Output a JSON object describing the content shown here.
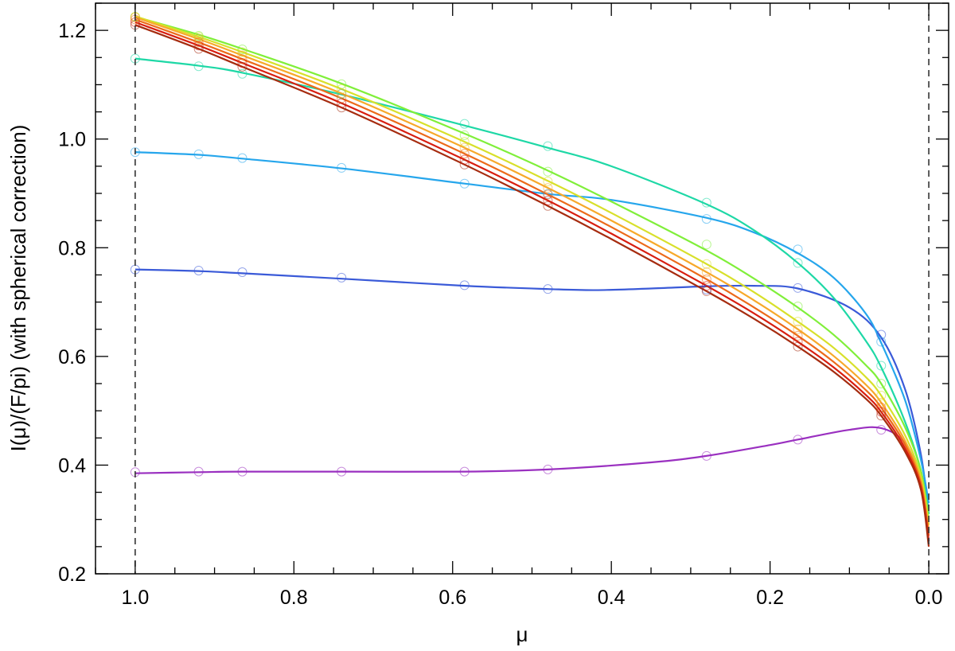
{
  "chart_data": {
    "type": "line",
    "xlabel": "μ",
    "ylabel": "I(μ)/(F/pi) (with spherical correction)",
    "xlim": [
      1.05,
      -0.025
    ],
    "ylim": [
      0.2,
      1.25
    ],
    "x_reversed": true,
    "x_ticks": [
      1.0,
      0.8,
      0.6,
      0.4,
      0.2,
      0.0
    ],
    "x_tick_labels": [
      "1.0",
      "0.8",
      "0.6",
      "0.4",
      "0.2",
      "0.0"
    ],
    "x_minor_step": 0.05,
    "y_ticks": [
      0.2,
      0.4,
      0.6,
      0.8,
      1.0,
      1.2
    ],
    "y_tick_labels": [
      "0.2",
      "0.4",
      "0.6",
      "0.8",
      "1.0",
      "1.2"
    ],
    "y_minor_step": 0.05,
    "reference_lines_x": [
      1.0,
      0.0
    ],
    "grid": false,
    "legend": "none",
    "marker_mu": [
      1.0,
      0.92,
      0.865,
      0.74,
      0.585,
      0.48,
      0.28,
      0.165,
      0.06
    ],
    "series": [
      {
        "color": "#9a30c0",
        "mu": [
          1.0,
          0.92,
          0.865,
          0.74,
          0.585,
          0.48,
          0.35,
          0.28,
          0.2,
          0.165,
          0.1,
          0.06,
          0.03,
          0.01,
          0.0
        ],
        "I": [
          0.385,
          0.387,
          0.388,
          0.388,
          0.388,
          0.392,
          0.405,
          0.417,
          0.437,
          0.447,
          0.465,
          0.468,
          0.44,
          0.37,
          0.26
        ],
        "markers": [
          0.387,
          0.388,
          0.388,
          0.388,
          0.388,
          0.392,
          0.417,
          0.447,
          0.465
        ]
      },
      {
        "color": "#3a5ad8",
        "mu": [
          1.0,
          0.92,
          0.865,
          0.74,
          0.585,
          0.48,
          0.42,
          0.35,
          0.28,
          0.22,
          0.165,
          0.1,
          0.06,
          0.03,
          0.01,
          0.0
        ],
        "I": [
          0.76,
          0.757,
          0.753,
          0.743,
          0.73,
          0.724,
          0.722,
          0.725,
          0.729,
          0.73,
          0.725,
          0.69,
          0.635,
          0.54,
          0.42,
          0.31
        ],
        "markers": [
          0.76,
          0.758,
          0.755,
          0.745,
          0.731,
          0.724,
          0.723,
          0.726,
          0.64
        ]
      },
      {
        "color": "#26a6ec",
        "mu": [
          1.0,
          0.92,
          0.865,
          0.74,
          0.585,
          0.48,
          0.4,
          0.28,
          0.22,
          0.165,
          0.12,
          0.08,
          0.06,
          0.03,
          0.01,
          0.0
        ],
        "I": [
          0.976,
          0.971,
          0.964,
          0.946,
          0.918,
          0.899,
          0.888,
          0.855,
          0.828,
          0.79,
          0.745,
          0.68,
          0.625,
          0.52,
          0.41,
          0.33
        ],
        "markers": [
          0.976,
          0.972,
          0.965,
          0.947,
          0.918,
          0.899,
          0.853,
          0.797,
          0.627
        ]
      },
      {
        "color": "#1ed8a6",
        "mu": [
          1.0,
          0.92,
          0.865,
          0.74,
          0.585,
          0.48,
          0.4,
          0.28,
          0.22,
          0.165,
          0.12,
          0.08,
          0.06,
          0.03,
          0.01,
          0.0
        ],
        "I": [
          1.148,
          1.135,
          1.122,
          1.082,
          1.025,
          0.984,
          0.95,
          0.88,
          0.832,
          0.772,
          0.708,
          0.63,
          0.58,
          0.48,
          0.39,
          0.31
        ],
        "markers": [
          1.148,
          1.134,
          1.12,
          1.083,
          1.028,
          0.987,
          0.883,
          0.772,
          0.583
        ]
      },
      {
        "color": "#80ef3a",
        "mu": [
          1.0,
          0.92,
          0.865,
          0.74,
          0.585,
          0.48,
          0.4,
          0.28,
          0.22,
          0.165,
          0.12,
          0.08,
          0.06,
          0.03,
          0.01,
          0.0
        ],
        "I": [
          1.225,
          1.192,
          1.166,
          1.102,
          1.01,
          0.942,
          0.885,
          0.795,
          0.743,
          0.69,
          0.64,
          0.585,
          0.55,
          0.47,
          0.39,
          0.3
        ],
        "markers": [
          1.225,
          1.19,
          1.165,
          1.101,
          1.007,
          0.94,
          0.806,
          0.692,
          0.55
        ]
      },
      {
        "color": "#d8e02a",
        "mu": [
          1.0,
          0.92,
          0.865,
          0.74,
          0.585,
          0.48,
          0.4,
          0.28,
          0.22,
          0.165,
          0.12,
          0.08,
          0.06,
          0.03,
          0.01,
          0.0
        ],
        "I": [
          1.226,
          1.188,
          1.16,
          1.092,
          0.995,
          0.923,
          0.864,
          0.77,
          0.718,
          0.664,
          0.616,
          0.563,
          0.528,
          0.455,
          0.38,
          0.29
        ],
        "markers": [
          1.225,
          1.188,
          1.16,
          1.092,
          0.995,
          0.922,
          0.77,
          0.664,
          0.528
        ]
      },
      {
        "color": "#f7a92a",
        "mu": [
          1.0,
          0.92,
          0.865,
          0.74,
          0.585,
          0.48,
          0.4,
          0.28,
          0.22,
          0.165,
          0.12,
          0.08,
          0.06,
          0.03,
          0.01,
          0.0
        ],
        "I": [
          1.224,
          1.184,
          1.154,
          1.084,
          0.984,
          0.91,
          0.85,
          0.755,
          0.703,
          0.65,
          0.601,
          0.549,
          0.515,
          0.445,
          0.372,
          0.28
        ],
        "markers": [
          1.224,
          1.184,
          1.154,
          1.084,
          0.984,
          0.91,
          0.755,
          0.65,
          0.515
        ]
      },
      {
        "color": "#ec6a1a",
        "mu": [
          1.0,
          0.92,
          0.865,
          0.74,
          0.585,
          0.48,
          0.4,
          0.28,
          0.22,
          0.165,
          0.12,
          0.08,
          0.06,
          0.03,
          0.01,
          0.0
        ],
        "I": [
          1.22,
          1.178,
          1.147,
          1.075,
          0.973,
          0.898,
          0.838,
          0.742,
          0.69,
          0.638,
          0.59,
          0.539,
          0.506,
          0.438,
          0.366,
          0.27
        ],
        "markers": [
          1.22,
          1.178,
          1.147,
          1.075,
          0.973,
          0.898,
          0.742,
          0.638,
          0.506
        ]
      },
      {
        "color": "#d81e10",
        "mu": [
          1.0,
          0.92,
          0.865,
          0.74,
          0.585,
          0.48,
          0.4,
          0.28,
          0.22,
          0.165,
          0.12,
          0.08,
          0.06,
          0.03,
          0.01,
          0.0
        ],
        "I": [
          1.215,
          1.172,
          1.14,
          1.066,
          0.962,
          0.887,
          0.826,
          0.73,
          0.679,
          0.627,
          0.58,
          0.53,
          0.498,
          0.431,
          0.36,
          0.26
        ],
        "markers": [
          1.215,
          1.172,
          1.14,
          1.066,
          0.962,
          0.887,
          0.73,
          0.627,
          0.498
        ]
      },
      {
        "color": "#a62c10",
        "mu": [
          1.0,
          0.92,
          0.865,
          0.74,
          0.585,
          0.48,
          0.4,
          0.28,
          0.22,
          0.165,
          0.12,
          0.08,
          0.06,
          0.03,
          0.01,
          0.0
        ],
        "I": [
          1.21,
          1.166,
          1.133,
          1.058,
          0.953,
          0.877,
          0.816,
          0.72,
          0.669,
          0.618,
          0.572,
          0.523,
          0.491,
          0.425,
          0.355,
          0.25
        ],
        "markers": [
          1.21,
          1.166,
          1.133,
          1.058,
          0.953,
          0.877,
          0.72,
          0.618,
          0.491
        ]
      }
    ]
  }
}
